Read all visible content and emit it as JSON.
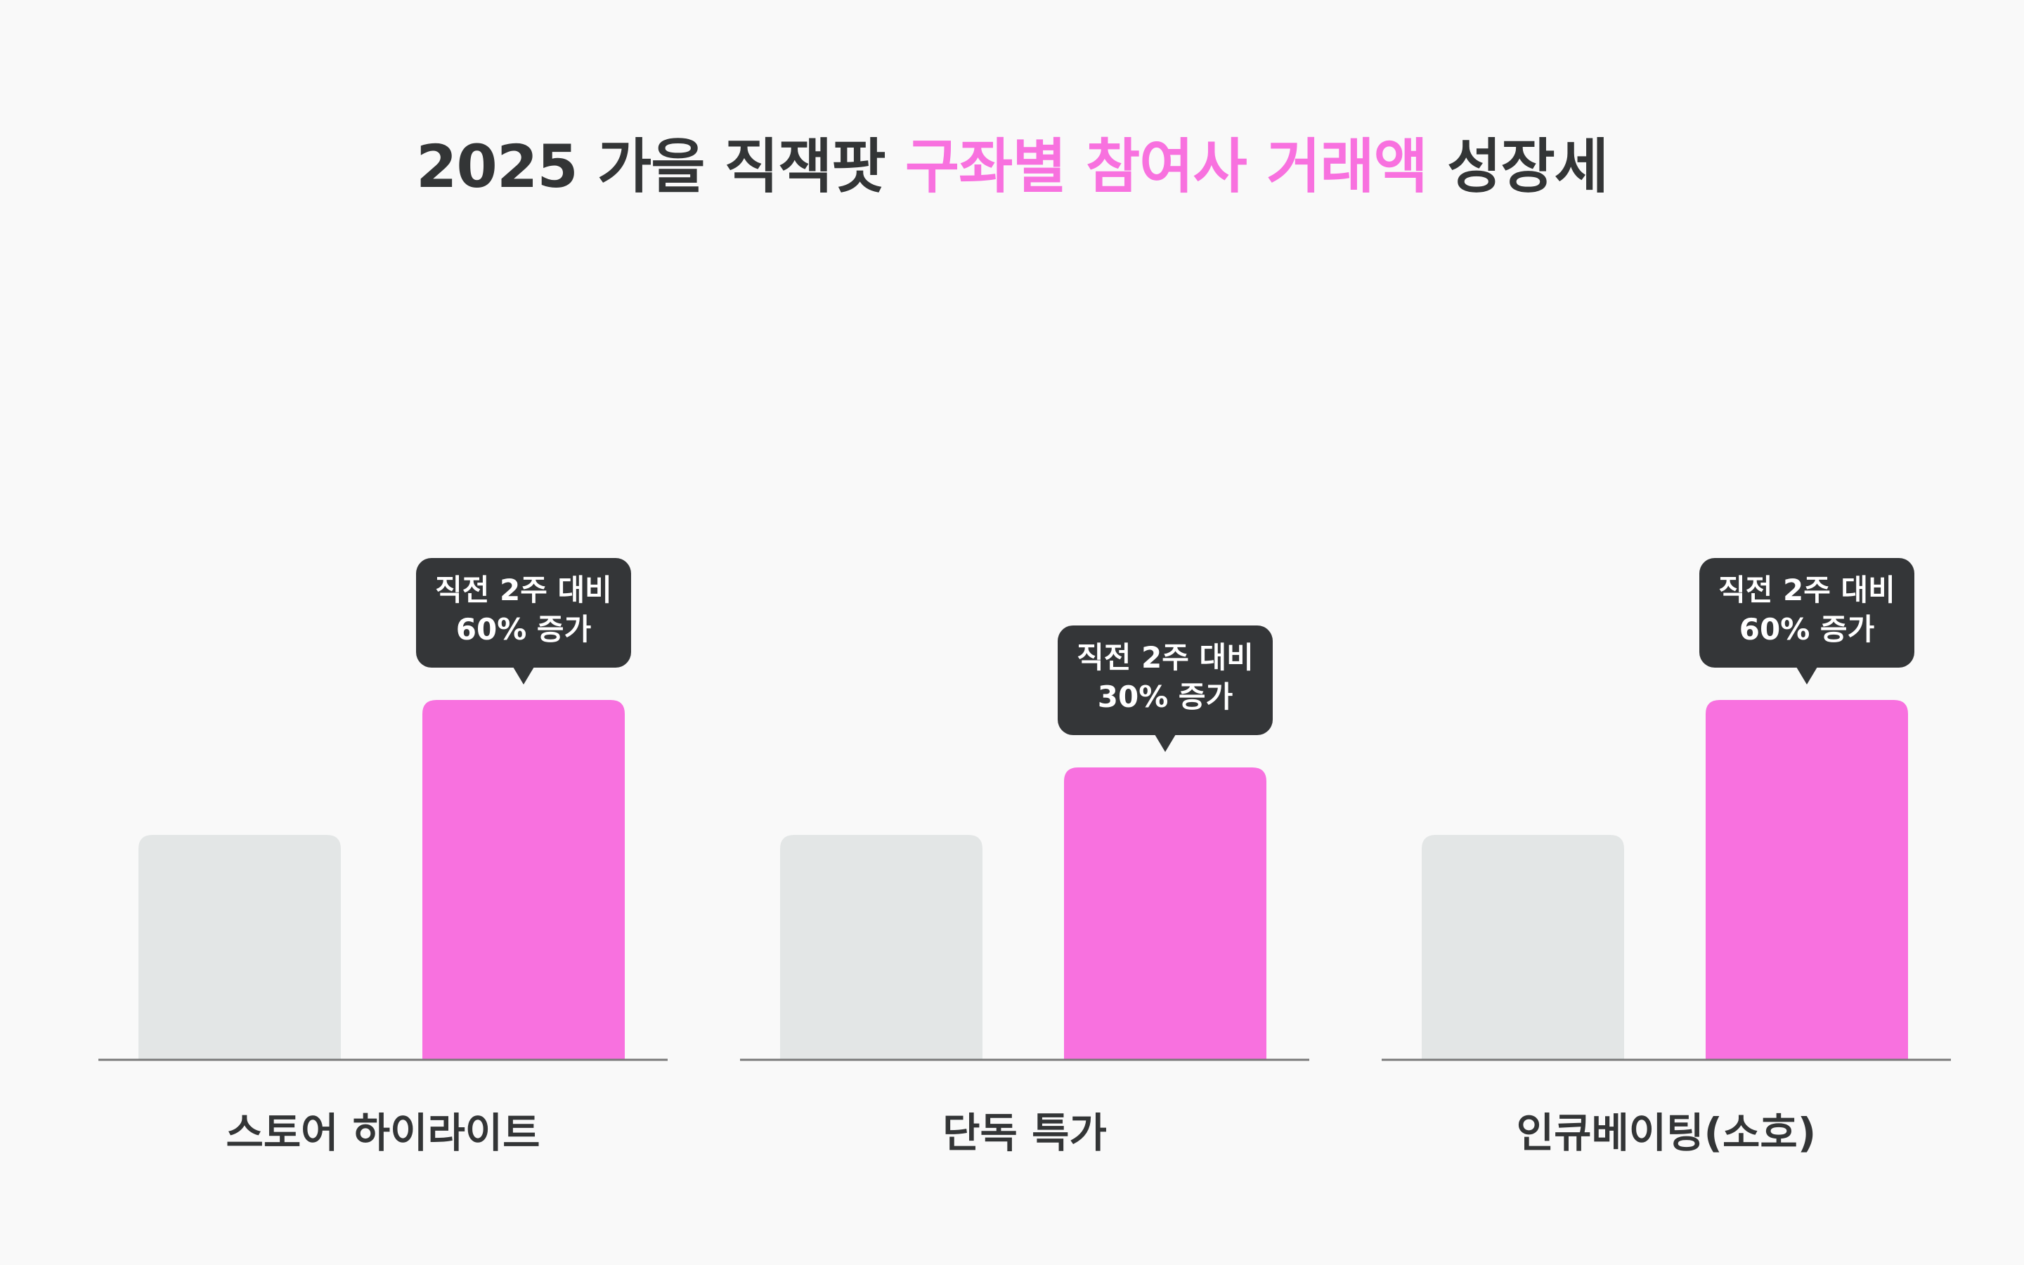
{
  "title": {
    "prefix": "2025 가을 직잭팟",
    "highlight": "구좌별 참여사 거래액",
    "suffix": "성장세"
  },
  "colors": {
    "baseline_bar": "#e3e6e6",
    "growth_bar": "#f871df",
    "callout_bg": "#343638",
    "callout_text": "#ffffff",
    "axis_line": "#7a7a7a",
    "title_text": "#333536",
    "title_accent": "#f871df"
  },
  "chart_data": {
    "type": "bar",
    "categories": [
      "스토어 하이라이트",
      "단독 특가",
      "인큐베이팅(소호)"
    ],
    "series": [
      {
        "values": [
          100,
          100,
          100
        ]
      },
      {
        "values": [
          160,
          130,
          160
        ]
      }
    ],
    "annotations": [
      {
        "line1": "직전 2주 대비",
        "line2": "60% 증가"
      },
      {
        "line1": "직전 2주 대비",
        "line2": "30% 증가"
      },
      {
        "line1": "직전 2주 대비",
        "line2": "60% 증가"
      }
    ],
    "title": "2025 가을 직잭팟 구좌별 참여사 거래액 성장세",
    "xlabel": "",
    "ylabel": "",
    "grid": false
  }
}
